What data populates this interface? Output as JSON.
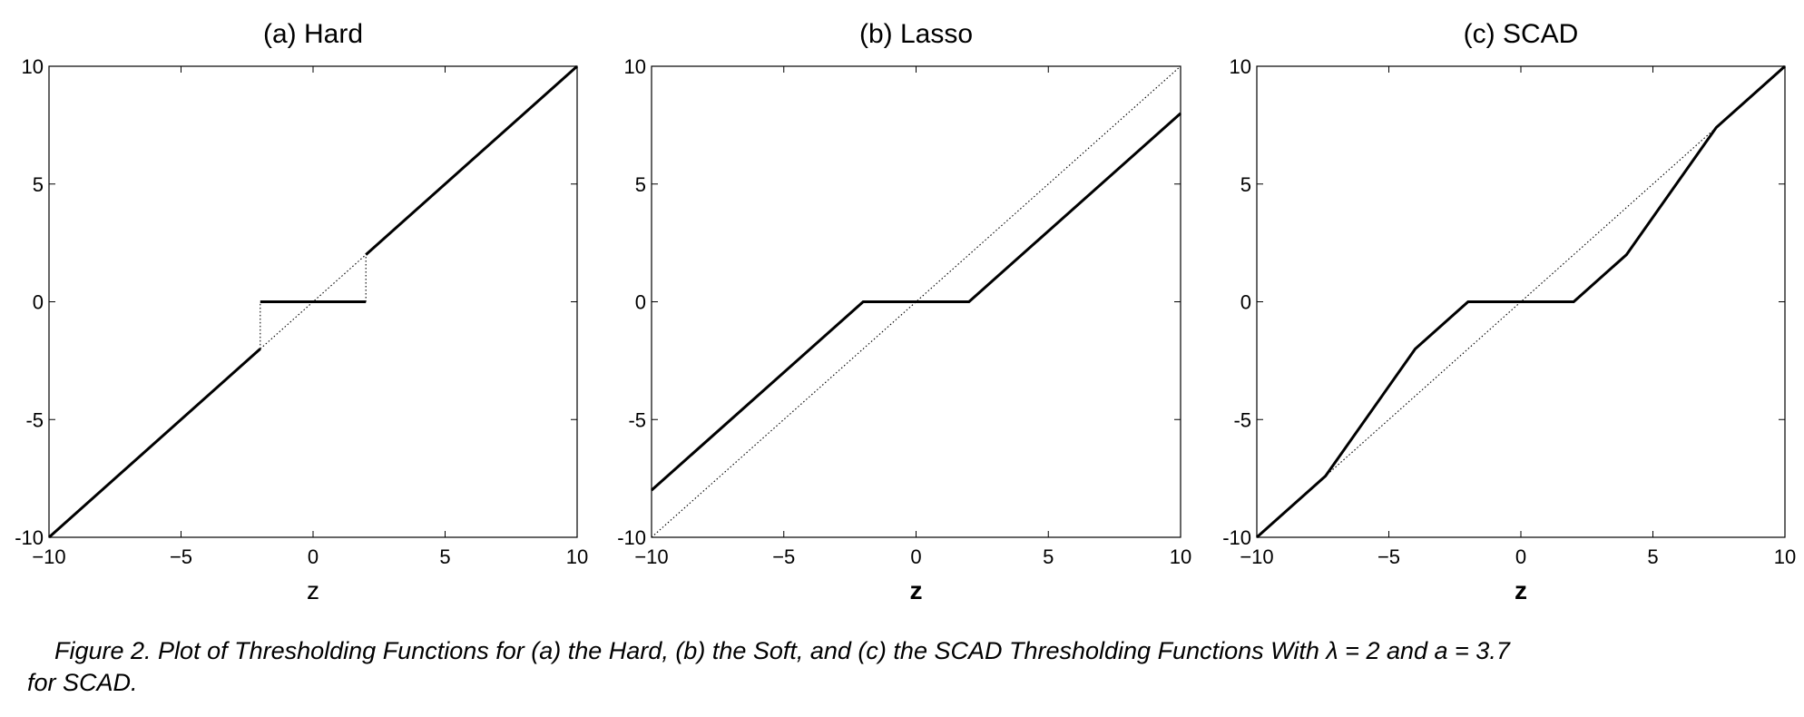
{
  "caption": {
    "line1": "Figure 2.   Plot of Thresholding Functions for (a) the Hard, (b) the Soft, and (c) the SCAD Thresholding Functions With λ = 2 and a = 3.7",
    "line2": "for SCAD."
  },
  "chart_data": [
    {
      "type": "line",
      "title": "(a) Hard",
      "xlabel": "z",
      "ylabel": "",
      "xlim": [
        -10,
        10
      ],
      "ylim": [
        -10,
        10
      ],
      "xticks": [
        -10,
        -5,
        0,
        5,
        10
      ],
      "yticks": [
        -10,
        -5,
        0,
        5,
        10
      ],
      "xtick_labels": [
        "−10",
        "−5",
        "0",
        "5",
        "10"
      ],
      "ytick_labels": [
        "-10",
        "-5",
        "0",
        "5",
        "10"
      ],
      "grid": false,
      "series": [
        {
          "style": "solid",
          "segments": [
            [
              [
                -10,
                -10
              ],
              [
                -2,
                -2
              ]
            ],
            [
              [
                -2,
                0
              ],
              [
                2,
                0
              ]
            ],
            [
              [
                2,
                2
              ],
              [
                10,
                10
              ]
            ]
          ]
        },
        {
          "style": "dotted",
          "segments": [
            [
              [
                -10,
                -10
              ],
              [
                10,
                10
              ]
            ],
            [
              [
                -2,
                -2
              ],
              [
                -2,
                0
              ]
            ],
            [
              [
                2,
                0
              ],
              [
                2,
                2
              ]
            ]
          ]
        }
      ]
    },
    {
      "type": "line",
      "title": "(b) Lasso",
      "xlabel": "z",
      "ylabel": "",
      "xlim": [
        -10,
        10
      ],
      "ylim": [
        -10,
        10
      ],
      "xticks": [
        -10,
        -5,
        0,
        5,
        10
      ],
      "yticks": [
        -10,
        -5,
        0,
        5,
        10
      ],
      "xtick_labels": [
        "−10",
        "−5",
        "0",
        "5",
        "10"
      ],
      "ytick_labels": [
        "-10",
        "-5",
        "0",
        "5",
        "10"
      ],
      "grid": false,
      "series": [
        {
          "style": "solid",
          "segments": [
            [
              [
                -10,
                -8
              ],
              [
                -2,
                0
              ],
              [
                2,
                0
              ],
              [
                10,
                8
              ]
            ]
          ]
        },
        {
          "style": "dotted",
          "segments": [
            [
              [
                -10,
                -10
              ],
              [
                10,
                10
              ]
            ]
          ]
        }
      ]
    },
    {
      "type": "line",
      "title": "(c) SCAD",
      "xlabel": "z",
      "ylabel": "",
      "xlim": [
        -10,
        10
      ],
      "ylim": [
        -10,
        10
      ],
      "xticks": [
        -10,
        -5,
        0,
        5,
        10
      ],
      "yticks": [
        -10,
        -5,
        0,
        5,
        10
      ],
      "xtick_labels": [
        "−10",
        "−5",
        "0",
        "5",
        "10"
      ],
      "ytick_labels": [
        "-10",
        "-5",
        "0",
        "5",
        "10"
      ],
      "grid": false,
      "series": [
        {
          "style": "solid",
          "segments": [
            [
              [
                -10,
                -10
              ],
              [
                -7.4,
                -7.4
              ],
              [
                -4,
                -2
              ],
              [
                -2,
                0
              ],
              [
                2,
                0
              ],
              [
                4,
                2
              ],
              [
                7.4,
                7.4
              ],
              [
                10,
                10
              ]
            ]
          ]
        },
        {
          "style": "dotted",
          "segments": [
            [
              [
                -10,
                -10
              ],
              [
                10,
                10
              ]
            ]
          ]
        }
      ]
    }
  ]
}
